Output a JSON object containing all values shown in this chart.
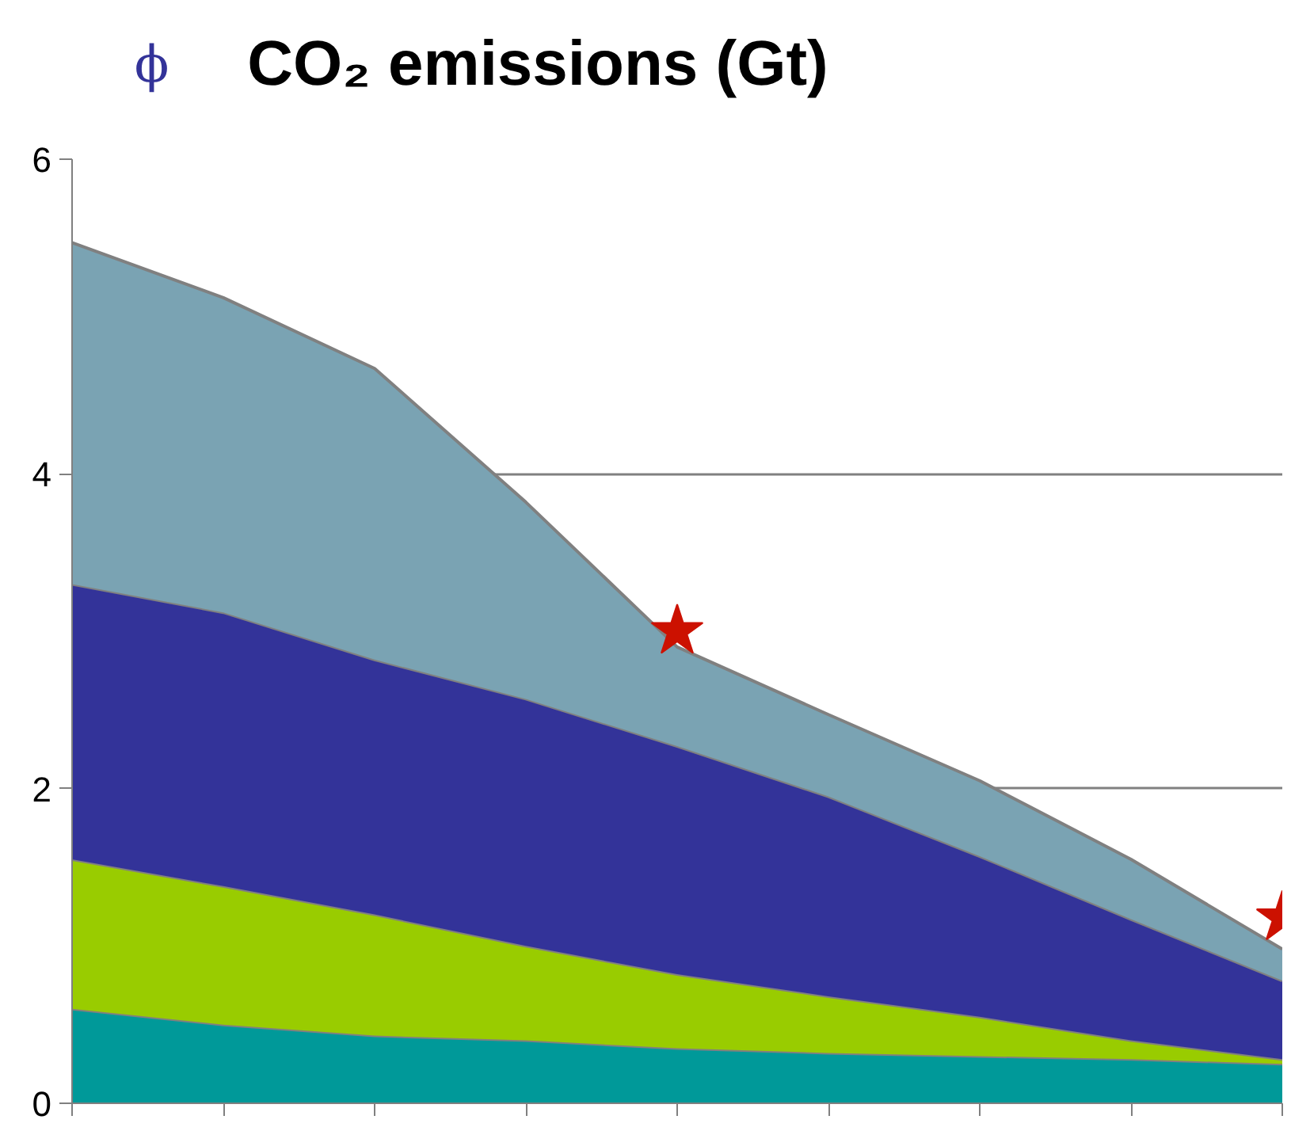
{
  "chart_data": {
    "type": "area",
    "title": "CO₂ emissions (Gt)",
    "annotations": [
      "ϕ"
    ],
    "categories": [
      null,
      null,
      null,
      null,
      null,
      null,
      null,
      null,
      null
    ],
    "stacked": true,
    "series": [
      {
        "color": "#009999",
        "values": [
          0.6,
          0.5,
          0.43,
          0.4,
          0.35,
          0.32,
          0.3,
          0.28,
          0.25
        ]
      },
      {
        "color": "#99cc00",
        "values": [
          0.95,
          0.88,
          0.77,
          0.6,
          0.47,
          0.36,
          0.25,
          0.12,
          0.03
        ]
      },
      {
        "color": "#333399",
        "values": [
          1.75,
          1.74,
          1.62,
          1.57,
          1.45,
          1.27,
          1.02,
          0.77,
          0.5
        ]
      },
      {
        "color": "#7aa3b3",
        "values": [
          2.17,
          2.0,
          1.85,
          1.25,
          0.63,
          0.52,
          0.48,
          0.38,
          0.2
        ]
      },
      {
        "type": "scatter",
        "marker": "star",
        "color": "#cc1100",
        "values": [
          null,
          null,
          null,
          null,
          3.0,
          null,
          null,
          null,
          1.18
        ]
      }
    ],
    "ylim": [
      0,
      6
    ],
    "yticks": [
      0,
      2,
      4,
      6
    ],
    "grid": "y",
    "tick_labels": "y"
  }
}
